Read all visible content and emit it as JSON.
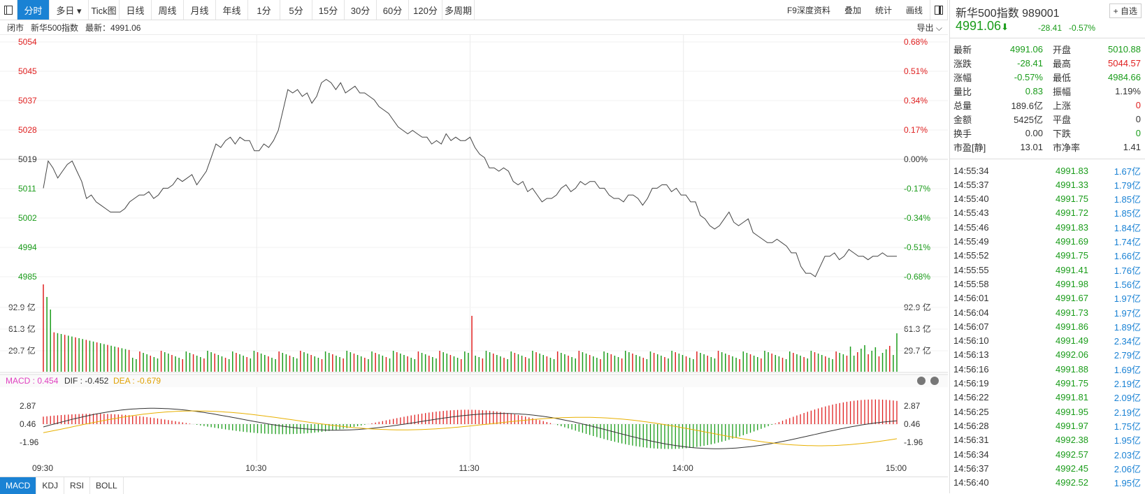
{
  "toolbar": {
    "items": [
      {
        "label": "分时",
        "active": true
      },
      {
        "label": "多日 ▾"
      },
      {
        "label": "Tick图"
      },
      {
        "label": "日线"
      },
      {
        "label": "周线"
      },
      {
        "label": "月线"
      },
      {
        "label": "年线"
      },
      {
        "label": "1分"
      },
      {
        "label": "5分"
      },
      {
        "label": "15分"
      },
      {
        "label": "30分"
      },
      {
        "label": "60分"
      },
      {
        "label": "120分"
      },
      {
        "label": "多周期"
      }
    ],
    "right_items": [
      "F9深度资料",
      "叠加",
      "统计",
      "画线"
    ]
  },
  "infobar": {
    "status": "闭市",
    "name": "新华500指数",
    "latest_label": "最新：4991.06",
    "export": "导出"
  },
  "sidebar": {
    "title": "新华500指数",
    "code": "989001",
    "add_button": "+ 自选",
    "price": "4991.06",
    "arrow": "⬇",
    "change": "-28.41",
    "change_pct": "-0.57%",
    "quotes": [
      {
        "l": "最新",
        "v": "4991.06",
        "vc": "green",
        "l2": "开盘",
        "v2": "5010.88",
        "v2c": "green"
      },
      {
        "l": "涨跌",
        "v": "-28.41",
        "vc": "green",
        "l2": "最高",
        "v2": "5044.57",
        "v2c": "red"
      },
      {
        "l": "涨幅",
        "v": "-0.57%",
        "vc": "green",
        "l2": "最低",
        "v2": "4984.66",
        "v2c": "green"
      },
      {
        "l": "量比",
        "v": "0.83",
        "vc": "green",
        "l2": "振幅",
        "v2": "1.19%",
        "v2c": ""
      },
      {
        "l": "总量",
        "v": "189.6亿",
        "vc": "",
        "l2": "上涨",
        "v2": "0",
        "v2c": "red"
      },
      {
        "l": "金额",
        "v": "5425亿",
        "vc": "",
        "l2": "平盘",
        "v2": "0",
        "v2c": ""
      },
      {
        "l": "换手",
        "v": "0.00",
        "vc": "",
        "l2": "下跌",
        "v2": "0",
        "v2c": "green"
      },
      {
        "l": "市盈[静]",
        "v": "13.01",
        "vc": "",
        "l2": "市净率",
        "v2": "1.41",
        "v2c": ""
      }
    ],
    "ticks": [
      {
        "t": "14:55:34",
        "p": "4991.83",
        "v": "1.67亿"
      },
      {
        "t": "14:55:37",
        "p": "4991.33",
        "v": "1.79亿"
      },
      {
        "t": "14:55:40",
        "p": "4991.75",
        "v": "1.85亿"
      },
      {
        "t": "14:55:43",
        "p": "4991.72",
        "v": "1.85亿"
      },
      {
        "t": "14:55:46",
        "p": "4991.83",
        "v": "1.84亿"
      },
      {
        "t": "14:55:49",
        "p": "4991.69",
        "v": "1.74亿"
      },
      {
        "t": "14:55:52",
        "p": "4991.75",
        "v": "1.66亿"
      },
      {
        "t": "14:55:55",
        "p": "4991.41",
        "v": "1.76亿"
      },
      {
        "t": "14:55:58",
        "p": "4991.98",
        "v": "1.56亿"
      },
      {
        "t": "14:56:01",
        "p": "4991.67",
        "v": "1.97亿"
      },
      {
        "t": "14:56:04",
        "p": "4991.73",
        "v": "1.97亿"
      },
      {
        "t": "14:56:07",
        "p": "4991.86",
        "v": "1.89亿"
      },
      {
        "t": "14:56:10",
        "p": "4991.49",
        "v": "2.34亿"
      },
      {
        "t": "14:56:13",
        "p": "4992.06",
        "v": "2.79亿"
      },
      {
        "t": "14:56:16",
        "p": "4991.88",
        "v": "1.69亿"
      },
      {
        "t": "14:56:19",
        "p": "4991.75",
        "v": "2.19亿"
      },
      {
        "t": "14:56:22",
        "p": "4991.81",
        "v": "2.09亿"
      },
      {
        "t": "14:56:25",
        "p": "4991.95",
        "v": "2.19亿"
      },
      {
        "t": "14:56:28",
        "p": "4991.97",
        "v": "1.75亿"
      },
      {
        "t": "14:56:31",
        "p": "4992.38",
        "v": "1.95亿"
      },
      {
        "t": "14:56:34",
        "p": "4992.57",
        "v": "2.03亿"
      },
      {
        "t": "14:56:37",
        "p": "4992.45",
        "v": "2.06亿"
      },
      {
        "t": "14:56:40",
        "p": "4992.52",
        "v": "1.95亿"
      }
    ]
  },
  "chart_data": {
    "type": "line",
    "price_axis": {
      "labels": [
        "5054",
        "5045",
        "5037",
        "5028",
        "5019",
        "5011",
        "5002",
        "4994",
        "4985"
      ],
      "pct_labels": [
        "0.68%",
        "0.51%",
        "0.34%",
        "0.17%",
        "0.00%",
        "-0.17%",
        "-0.34%",
        "-0.51%",
        "-0.68%"
      ],
      "prev_close": 5019.47
    },
    "x_labels": [
      "09:30",
      "10:30",
      "11:30",
      "14:00",
      "15:00"
    ],
    "price": [
      5011,
      5019,
      5017,
      5014,
      5016,
      5018,
      5019,
      5016,
      5013,
      5008,
      5009,
      5007,
      5006,
      5005,
      5004,
      5004,
      5004,
      5005,
      5007,
      5008,
      5009,
      5009,
      5010,
      5008,
      5009,
      5011,
      5011,
      5012,
      5014,
      5013,
      5014,
      5015,
      5012,
      5014,
      5016,
      5020,
      5024,
      5023,
      5025,
      5026,
      5024,
      5026,
      5025,
      5025,
      5022,
      5022,
      5024,
      5023,
      5025,
      5028,
      5034,
      5040,
      5039,
      5040,
      5038,
      5039,
      5036,
      5038,
      5042,
      5043,
      5042,
      5040,
      5042,
      5039,
      5040,
      5041,
      5039,
      5039,
      5038,
      5037,
      5035,
      5034,
      5033,
      5031,
      5029,
      5028,
      5027,
      5028,
      5027,
      5026,
      5026,
      5024,
      5025,
      5024,
      5027,
      5025,
      5026,
      5025,
      5025,
      5026,
      5023,
      5021,
      5020,
      5017,
      5017,
      5016,
      5017,
      5016,
      5013,
      5012,
      5013,
      5010,
      5011,
      5009,
      5007,
      5008,
      5008,
      5009,
      5011,
      5012,
      5010,
      5011,
      5013,
      5012,
      5013,
      5013,
      5011,
      5011,
      5009,
      5008,
      5008,
      5007,
      5009,
      5009,
      5008,
      5006,
      5008,
      5011,
      5011,
      5012,
      5012,
      5010,
      5011,
      5009,
      5009,
      5007,
      5007,
      5003,
      5002,
      5000,
      4999,
      5000,
      5002,
      5004,
      5001,
      5000,
      5001,
      5002,
      4998,
      4997,
      4996,
      4995,
      4995,
      4996,
      4995,
      4994,
      4992,
      4992,
      4988,
      4986,
      4986,
      4985,
      4988,
      4991,
      4991,
      4992,
      4990,
      4991,
      4993,
      4992,
      4991,
      4991,
      4990,
      4991,
      4991,
      4992,
      4991,
      4991,
      4991
    ],
    "volume_axis": [
      "92.9 亿",
      "61.3 亿",
      "29.7 亿"
    ],
    "macd": {
      "label": "MACD : 0.454",
      "dif": "DIF : -0.452",
      "dea": "DEA : -0.679",
      "axis": [
        "2.87",
        "0.46",
        "-1.96"
      ]
    }
  },
  "bottom_tabs": [
    "MACD",
    "KDJ",
    "RSI",
    "BOLL"
  ]
}
